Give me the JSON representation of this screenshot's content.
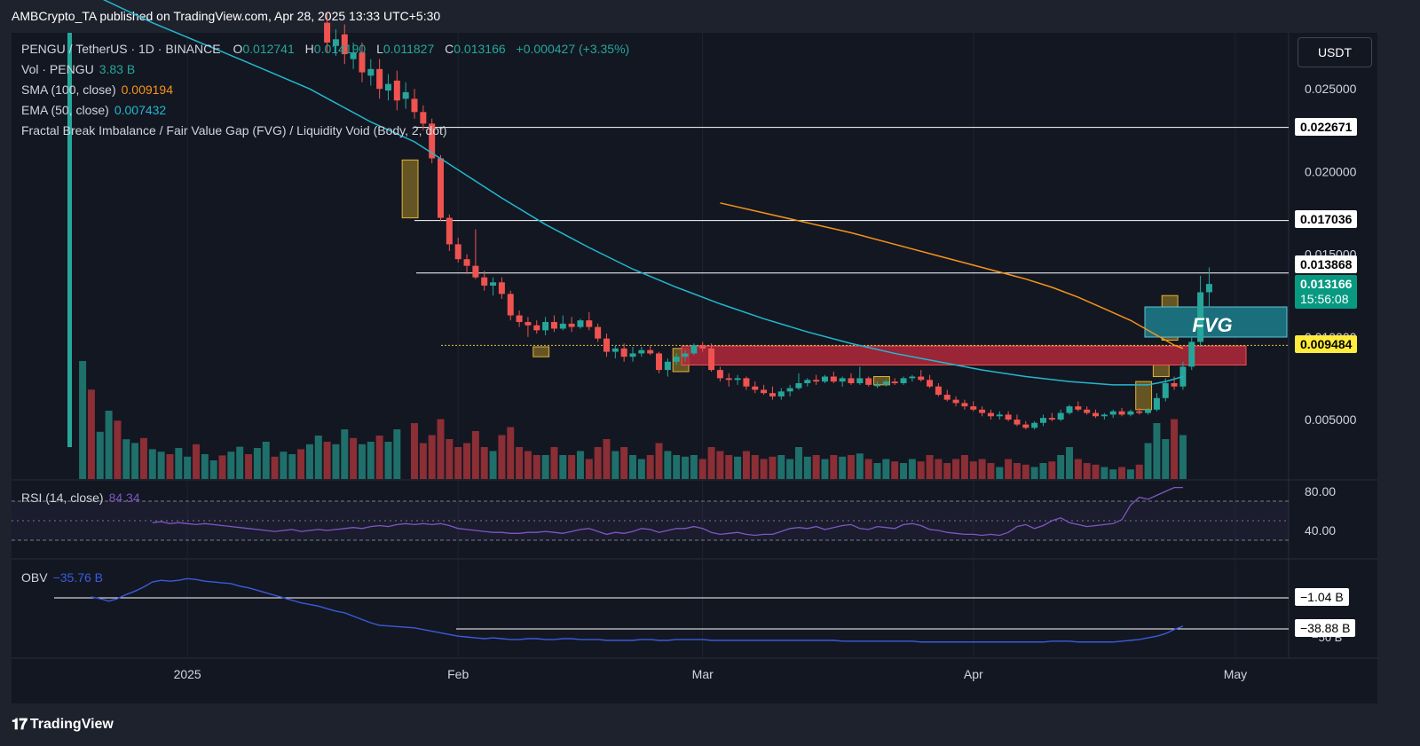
{
  "header": {
    "published": "AMBCrypto_TA published on TradingView.com, Apr 28, 2025 13:33 UTC+5:30"
  },
  "footer": {
    "brand": "TradingView",
    "logo": "tradingview-logo-icon"
  },
  "toolbar": {
    "currency": "USDT"
  },
  "colors": {
    "up": "#26a69a",
    "down": "#ef5350",
    "sma": "#f7931a",
    "ema": "#22b8cf",
    "rsi": "#7e57c2",
    "obv": "#3b5bdb",
    "fvg_box": "#1b6f7c",
    "zone": "#b2283b",
    "last_price": "#089981",
    "level_tag": "#ffeb3b"
  },
  "legend": {
    "symbol": "PENGU / TetherUS · 1D · BINANCE",
    "o_label": "O",
    "o": "0.012741",
    "h_label": "H",
    "h": "0.014190",
    "l_label": "L",
    "l": "0.011827",
    "c_label": "C",
    "c": "0.013166",
    "change": "+0.000427 (+3.35%)",
    "vol_label": "Vol · PENGU",
    "vol": "3.83 B",
    "sma_label": "SMA (100, close)",
    "sma": "0.009194",
    "ema_label": "EMA (50, close)",
    "ema": "0.007432",
    "fvg_label": "Fractal Break Imbalance / Fair Value Gap (FVG) / Liquidity Void (Body, 2, dot)"
  },
  "rsi": {
    "label": "RSI (14, close)",
    "value": "84.34",
    "ticks": [
      "80.00",
      "40.00"
    ],
    "last": 84.34
  },
  "obv": {
    "label": "OBV",
    "value": "−35.76 B",
    "levels": [
      "−1.04 B",
      "−38.88 B"
    ],
    "partial_tick": "−50 B"
  },
  "annotations": {
    "fvg_text": "FVG"
  },
  "price_tags": {
    "level_1": "0.022671",
    "level_2": "0.017036",
    "level_3": "0.013868",
    "last_price": "0.013166",
    "countdown": "15:56:08",
    "level_4": "0.009484"
  },
  "chart_data": {
    "type": "candlestick",
    "title": "PENGU / TetherUS · 1D · BINANCE",
    "x_ticks": [
      "2025",
      "Feb",
      "Mar",
      "Apr",
      "May"
    ],
    "y_ticks": [
      "0.025000",
      "0.020000",
      "0.015000",
      "0.010000",
      "0.005000"
    ],
    "partial_tick": "0.010000",
    "ylim": [
      0.0015,
      0.0275
    ],
    "horizontal_levels": [
      0.022671,
      0.017036,
      0.013868,
      0.009484
    ],
    "start_date": "2025-01-27",
    "candles": [
      [
        "2025-01-27",
        0.0244,
        0.025,
        0.0232,
        0.0236
      ],
      [
        "2025-01-28",
        0.0236,
        0.024,
        0.0225,
        0.0229
      ],
      [
        "2025-01-29",
        0.0229,
        0.0232,
        0.0205,
        0.0208
      ],
      [
        "2025-01-30",
        0.0208,
        0.021,
        0.017,
        0.0172
      ],
      [
        "2025-01-31",
        0.0172,
        0.0174,
        0.0152,
        0.0156
      ],
      [
        "2025-02-01",
        0.0156,
        0.016,
        0.0145,
        0.0147
      ],
      [
        "2025-02-02",
        0.0147,
        0.015,
        0.0138,
        0.0143
      ],
      [
        "2025-02-03",
        0.0143,
        0.0165,
        0.0135,
        0.0136
      ],
      [
        "2025-02-04",
        0.0136,
        0.014,
        0.0128,
        0.0131
      ],
      [
        "2025-02-05",
        0.0131,
        0.0136,
        0.0125,
        0.0133
      ],
      [
        "2025-02-06",
        0.0133,
        0.0136,
        0.0123,
        0.0126
      ],
      [
        "2025-02-07",
        0.0126,
        0.0128,
        0.011,
        0.0113
      ],
      [
        "2025-02-08",
        0.0113,
        0.0116,
        0.0106,
        0.0109
      ],
      [
        "2025-02-09",
        0.0109,
        0.0112,
        0.01,
        0.0107
      ],
      [
        "2025-02-10",
        0.0107,
        0.011,
        0.0102,
        0.0104
      ],
      [
        "2025-02-11",
        0.0104,
        0.0112,
        0.0101,
        0.0109
      ],
      [
        "2025-02-12",
        0.0109,
        0.0113,
        0.0103,
        0.0105
      ],
      [
        "2025-02-13",
        0.0105,
        0.0113,
        0.0104,
        0.0108
      ],
      [
        "2025-02-14",
        0.0108,
        0.0112,
        0.0103,
        0.0106
      ],
      [
        "2025-02-15",
        0.0106,
        0.0111,
        0.0105,
        0.011
      ],
      [
        "2025-02-16",
        0.011,
        0.0115,
        0.0104,
        0.0106
      ],
      [
        "2025-02-17",
        0.0106,
        0.0108,
        0.0097,
        0.0099
      ],
      [
        "2025-02-18",
        0.0099,
        0.0102,
        0.0088,
        0.0091
      ],
      [
        "2025-02-19",
        0.0091,
        0.0095,
        0.0087,
        0.0093
      ],
      [
        "2025-02-20",
        0.0093,
        0.0096,
        0.0085,
        0.0088
      ],
      [
        "2025-02-21",
        0.0088,
        0.0094,
        0.0085,
        0.009
      ],
      [
        "2025-02-22",
        0.009,
        0.0094,
        0.0088,
        0.0092
      ],
      [
        "2025-02-23",
        0.0092,
        0.0095,
        0.0089,
        0.009
      ],
      [
        "2025-02-24",
        0.009,
        0.0091,
        0.0078,
        0.008
      ],
      [
        "2025-02-25",
        0.008,
        0.0087,
        0.0076,
        0.0085
      ],
      [
        "2025-02-26",
        0.0085,
        0.009,
        0.0083,
        0.0088
      ],
      [
        "2025-02-27",
        0.0088,
        0.0092,
        0.0085,
        0.009
      ],
      [
        "2025-02-28",
        0.009,
        0.0096,
        0.0089,
        0.0095
      ],
      [
        "2025-03-01",
        0.0095,
        0.0097,
        0.0091,
        0.0093
      ],
      [
        "2025-03-02",
        0.0093,
        0.0096,
        0.0079,
        0.008
      ],
      [
        "2025-03-03",
        0.008,
        0.0082,
        0.0073,
        0.0075
      ],
      [
        "2025-03-04",
        0.0075,
        0.0078,
        0.007,
        0.0074
      ],
      [
        "2025-03-05",
        0.0074,
        0.0077,
        0.0071,
        0.0075
      ],
      [
        "2025-03-06",
        0.0075,
        0.0076,
        0.0068,
        0.007
      ],
      [
        "2025-03-07",
        0.007,
        0.0073,
        0.0066,
        0.0068
      ],
      [
        "2025-03-08",
        0.0068,
        0.0071,
        0.0065,
        0.0066
      ],
      [
        "2025-03-09",
        0.0066,
        0.007,
        0.0062,
        0.0064
      ],
      [
        "2025-03-10",
        0.0064,
        0.0069,
        0.0062,
        0.0067
      ],
      [
        "2025-03-11",
        0.0067,
        0.0071,
        0.0064,
        0.0069
      ],
      [
        "2025-03-12",
        0.0069,
        0.0078,
        0.0068,
        0.0072
      ],
      [
        "2025-03-13",
        0.0072,
        0.0075,
        0.007,
        0.0074
      ],
      [
        "2025-03-14",
        0.0074,
        0.0077,
        0.0071,
        0.0073
      ],
      [
        "2025-03-15",
        0.0073,
        0.0077,
        0.0072,
        0.0076
      ],
      [
        "2025-03-16",
        0.0076,
        0.0079,
        0.0072,
        0.0073
      ],
      [
        "2025-03-17",
        0.0073,
        0.0076,
        0.007,
        0.0075
      ],
      [
        "2025-03-18",
        0.0075,
        0.0078,
        0.0071,
        0.0072
      ],
      [
        "2025-03-19",
        0.0072,
        0.0082,
        0.0071,
        0.0075
      ],
      [
        "2025-03-20",
        0.0075,
        0.0076,
        0.007,
        0.0071
      ],
      [
        "2025-03-21",
        0.0071,
        0.0073,
        0.0069,
        0.0071
      ],
      [
        "2025-03-22",
        0.0071,
        0.0074,
        0.007,
        0.0073
      ],
      [
        "2025-03-23",
        0.0073,
        0.0075,
        0.0071,
        0.0072
      ],
      [
        "2025-03-24",
        0.0072,
        0.0076,
        0.0071,
        0.0075
      ],
      [
        "2025-03-25",
        0.0075,
        0.0077,
        0.0073,
        0.0076
      ],
      [
        "2025-03-26",
        0.0076,
        0.008,
        0.0073,
        0.0074
      ],
      [
        "2025-03-27",
        0.0074,
        0.0077,
        0.0069,
        0.007
      ],
      [
        "2025-03-28",
        0.007,
        0.0072,
        0.0064,
        0.0065
      ],
      [
        "2025-03-29",
        0.0065,
        0.0068,
        0.0061,
        0.0062
      ],
      [
        "2025-03-30",
        0.0062,
        0.0064,
        0.0058,
        0.006
      ],
      [
        "2025-03-31",
        0.006,
        0.0062,
        0.0056,
        0.0058
      ],
      [
        "2025-04-01",
        0.0058,
        0.0061,
        0.0055,
        0.0056
      ],
      [
        "2025-04-02",
        0.0056,
        0.0058,
        0.0052,
        0.0054
      ],
      [
        "2025-04-03",
        0.0054,
        0.0056,
        0.005,
        0.0052
      ],
      [
        "2025-04-04",
        0.0052,
        0.0055,
        0.005,
        0.0053
      ],
      [
        "2025-04-05",
        0.0053,
        0.0055,
        0.0049,
        0.005
      ],
      [
        "2025-04-06",
        0.005,
        0.0053,
        0.0046,
        0.0047
      ],
      [
        "2025-04-07",
        0.0047,
        0.0049,
        0.0044,
        0.0045
      ],
      [
        "2025-04-08",
        0.0045,
        0.0049,
        0.0044,
        0.0048
      ],
      [
        "2025-04-09",
        0.0048,
        0.0053,
        0.0046,
        0.0051
      ],
      [
        "2025-04-10",
        0.0051,
        0.0054,
        0.0049,
        0.005
      ],
      [
        "2025-04-11",
        0.005,
        0.0056,
        0.0049,
        0.0054
      ],
      [
        "2025-04-12",
        0.0054,
        0.0059,
        0.0053,
        0.0058
      ],
      [
        "2025-04-13",
        0.0058,
        0.0061,
        0.0055,
        0.0056
      ],
      [
        "2025-04-14",
        0.0056,
        0.0058,
        0.0053,
        0.0054
      ],
      [
        "2025-04-15",
        0.0054,
        0.0056,
        0.0051,
        0.0052
      ],
      [
        "2025-04-16",
        0.0052,
        0.0054,
        0.005,
        0.0053
      ],
      [
        "2025-04-17",
        0.0053,
        0.0056,
        0.0051,
        0.0055
      ],
      [
        "2025-04-18",
        0.0055,
        0.0057,
        0.0052,
        0.0053
      ],
      [
        "2025-04-19",
        0.0053,
        0.0056,
        0.0052,
        0.0055
      ],
      [
        "2025-04-20",
        0.0055,
        0.0057,
        0.0053,
        0.0054
      ],
      [
        "2025-04-21",
        0.0054,
        0.0057,
        0.0053,
        0.0056
      ],
      [
        "2025-04-22",
        0.0056,
        0.0066,
        0.0055,
        0.0063
      ],
      [
        "2025-04-23",
        0.0063,
        0.0075,
        0.0061,
        0.0072
      ],
      [
        "2025-04-24",
        0.0072,
        0.0076,
        0.0068,
        0.007
      ],
      [
        "2025-04-25",
        0.007,
        0.0085,
        0.0068,
        0.0082
      ],
      [
        "2025-04-26",
        0.0082,
        0.01,
        0.008,
        0.0097
      ],
      [
        "2025-04-27",
        0.0097,
        0.0137,
        0.0094,
        0.0127
      ],
      [
        "2025-04-28",
        0.0127,
        0.0142,
        0.0118,
        0.0132
      ]
    ],
    "volume_relative": [
      0.7,
      0.45,
      0.55,
      0.75,
      0.5,
      0.4,
      0.45,
      0.6,
      0.4,
      0.35,
      0.55,
      0.65,
      0.4,
      0.35,
      0.3,
      0.3,
      0.4,
      0.3,
      0.3,
      0.35,
      0.25,
      0.4,
      0.5,
      0.35,
      0.4,
      0.3,
      0.25,
      0.3,
      0.45,
      0.35,
      0.3,
      0.28,
      0.3,
      0.25,
      0.4,
      0.35,
      0.3,
      0.28,
      0.35,
      0.3,
      0.25,
      0.28,
      0.3,
      0.25,
      0.4,
      0.28,
      0.3,
      0.25,
      0.3,
      0.28,
      0.3,
      0.32,
      0.25,
      0.2,
      0.25,
      0.22,
      0.2,
      0.25,
      0.22,
      0.3,
      0.25,
      0.2,
      0.25,
      0.3,
      0.22,
      0.25,
      0.2,
      0.15,
      0.25,
      0.2,
      0.18,
      0.15,
      0.2,
      0.22,
      0.3,
      0.4,
      0.25,
      0.2,
      0.18,
      0.15,
      0.12,
      0.15,
      0.12,
      0.18,
      0.45,
      0.7,
      0.5,
      0.75,
      0.55
    ],
    "sma_100": [
      [
        35,
        0.0181
      ],
      [
        40,
        0.0175
      ],
      [
        45,
        0.0169
      ],
      [
        50,
        0.0163
      ],
      [
        55,
        0.0156
      ],
      [
        60,
        0.0149
      ],
      [
        65,
        0.0142
      ],
      [
        70,
        0.0135
      ],
      [
        73,
        0.013
      ],
      [
        76,
        0.0124
      ],
      [
        79,
        0.0117
      ],
      [
        82,
        0.011
      ],
      [
        84,
        0.0104
      ],
      [
        86,
        0.0098
      ],
      [
        87,
        0.0095
      ],
      [
        88,
        0.0093
      ]
    ],
    "ema_50": [
      [
        -40,
        0.0315
      ],
      [
        -30,
        0.029
      ],
      [
        -20,
        0.0268
      ],
      [
        -12,
        0.025
      ],
      [
        -5,
        0.023
      ],
      [
        0,
        0.0218
      ],
      [
        5,
        0.0201
      ],
      [
        10,
        0.0184
      ],
      [
        15,
        0.0168
      ],
      [
        20,
        0.0154
      ],
      [
        25,
        0.0141
      ],
      [
        30,
        0.013
      ],
      [
        35,
        0.012
      ],
      [
        40,
        0.0111
      ],
      [
        45,
        0.0103
      ],
      [
        50,
        0.0096
      ],
      [
        55,
        0.009
      ],
      [
        60,
        0.0085
      ],
      [
        65,
        0.008
      ],
      [
        70,
        0.0076
      ],
      [
        75,
        0.0073
      ],
      [
        80,
        0.0071
      ],
      [
        84,
        0.0071
      ],
      [
        86,
        0.0073
      ],
      [
        88,
        0.0076
      ]
    ],
    "fvg_zones": [
      {
        "kind": "fvg",
        "start": -1,
        "end": 0,
        "top": 0.0207,
        "bottom": 0.0172
      },
      {
        "kind": "fvg",
        "start": 14,
        "end": 15,
        "top": 0.0094,
        "bottom": 0.0088
      },
      {
        "kind": "fvg",
        "start": 30,
        "end": 31,
        "top": 0.0093,
        "bottom": 0.0079
      },
      {
        "kind": "fvg",
        "start": 53,
        "end": 54,
        "top": 0.0076,
        "bottom": 0.0071
      },
      {
        "kind": "fvg",
        "start": 83,
        "end": 84,
        "top": 0.0073,
        "bottom": 0.0056
      },
      {
        "kind": "fvg",
        "start": 85,
        "end": 86,
        "top": 0.0083,
        "bottom": 0.0076
      },
      {
        "kind": "fvg",
        "start": 86,
        "end": 87,
        "top": 0.0125,
        "bottom": 0.0098
      },
      {
        "kind": "resistance",
        "start": 30,
        "end": 108,
        "top": 0.00945,
        "bottom": 0.0083
      },
      {
        "kind": "annotation",
        "start": 88,
        "end": 110,
        "top": 0.0121,
        "bottom": 0.0101
      }
    ],
    "rsi_series": [
      46,
      47,
      46,
      47,
      45,
      42,
      41,
      40,
      39,
      38,
      38,
      37,
      37,
      38,
      38,
      39,
      38,
      37,
      39,
      41,
      42,
      39,
      36,
      38,
      37,
      39,
      42,
      41,
      38,
      40,
      42,
      42,
      44,
      42,
      38,
      36,
      37,
      38,
      36,
      35,
      36,
      36,
      39,
      42,
      43,
      42,
      44,
      41,
      43,
      45,
      46,
      42,
      41,
      44,
      43,
      42,
      46,
      47,
      45,
      41,
      40,
      38,
      37,
      36,
      36,
      35,
      36,
      35,
      38,
      44,
      46,
      42,
      45,
      50,
      53,
      48,
      46,
      44,
      45,
      46,
      47,
      51,
      66,
      74,
      72,
      76,
      80,
      84,
      84
    ],
    "obv_series": [
      -38,
      -40,
      -42,
      -44,
      -46,
      -48,
      -49,
      -50,
      -51,
      -50,
      -51,
      -52,
      -52,
      -51,
      -51,
      -52,
      -52,
      -51,
      -51,
      -52,
      -52,
      -52,
      -53,
      -53,
      -53,
      -53,
      -52,
      -52,
      -53,
      -53,
      -52,
      -52,
      -52,
      -52,
      -53,
      -53,
      -53,
      -53,
      -53,
      -53,
      -53,
      -53,
      -53,
      -53,
      -53,
      -53,
      -53,
      -53,
      -53,
      -54,
      -54,
      -54,
      -54,
      -54,
      -54,
      -54,
      -54,
      -54,
      -55,
      -55,
      -55,
      -55,
      -55,
      -55,
      -55,
      -55,
      -55,
      -55,
      -55,
      -55,
      -55,
      -55,
      -55,
      -54,
      -54,
      -54,
      -55,
      -55,
      -55,
      -55,
      -55,
      -54,
      -53,
      -52,
      -50,
      -48,
      -45,
      -40,
      -36
    ]
  }
}
